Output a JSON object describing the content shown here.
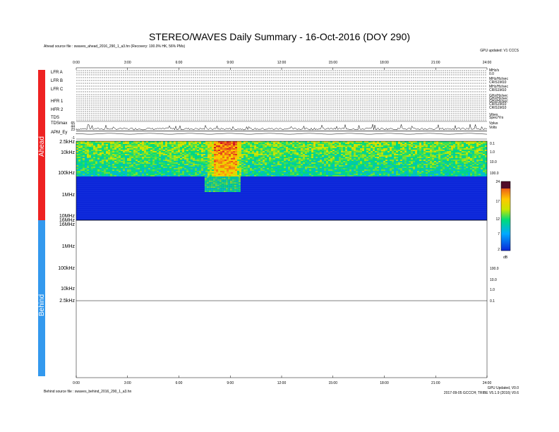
{
  "chart_data": {
    "type": "heatmap",
    "title": "STEREO/WAVES Daily Summary - 16-Oct-2016 (DOY 290)",
    "ahead_source": "Ahead source file : swaves_ahead_2016_290_1_a3.hn (Recovery: 100.0% HK, 56% PMs)",
    "behind_source": "Behind source file : swaves_behind_2016_290_1_a3.hn",
    "top_right_note": "GPU updated: V1 CCCS",
    "bottom_right_note1": "GPU Updated, V0.0",
    "bottom_right_note2": "2017-09-05 GCCCH; TRIBE V5.1.9 (2016) V0.6",
    "x_ticks": [
      "0:00",
      "3:00",
      "6:00",
      "9:00",
      "12:00",
      "15:00",
      "18:00",
      "21:00",
      "24:00"
    ],
    "panel_labels": [
      "LFR A",
      "LFR B",
      "LFR C",
      "HFR 1",
      "HFR 2",
      "TDS",
      "TDSmax",
      "APM_Ey"
    ],
    "tdsmax_ticks": [
      "65",
      "44",
      "23"
    ],
    "apm_tick": "-1",
    "ahead_freq_labels": [
      "2.5kHz",
      "10kHz",
      "100kHz",
      "1MHz",
      "10MHz",
      "16MHz"
    ],
    "behind_freq_labels": [
      "16MHz",
      "1MHz",
      "100kHz",
      "10kHz",
      "2.5kHz"
    ],
    "right_scale_top": [
      "0.1",
      "1.0",
      "10.0",
      "100.0"
    ],
    "right_scale_bottom": [
      "100.0",
      "10.0",
      "1.0",
      "0.1"
    ],
    "right_panel_labels": [
      "MHz/s",
      "0.0",
      "MHz/Hz/sec",
      "CRIS1M10",
      "MHz/Hz/sec",
      "CRIS1M10",
      "GHz/Hz/sec",
      "GHz/Hz/sec",
      "GHz/Hz/sec",
      "CRIS1M10",
      "CRIS1M10",
      "Vibes",
      "Spec/Yrs",
      "Vplus",
      "Volts"
    ],
    "colorbar": {
      "ticks": [
        "24",
        "17",
        "12",
        "7",
        "2"
      ],
      "unit": "dB",
      "min": 2,
      "max": 24
    },
    "side_labels": {
      "ahead": "Ahead",
      "behind": "Behind"
    },
    "burst": {
      "start_hour": 7.6,
      "end_hour": 9.6,
      "core_start_hour": 8.0,
      "core_end_hour": 9.3
    },
    "colors": {
      "ahead_bar": "#ee2222",
      "behind_bar": "#3399ee",
      "background_blue": "#0a24d8"
    }
  }
}
